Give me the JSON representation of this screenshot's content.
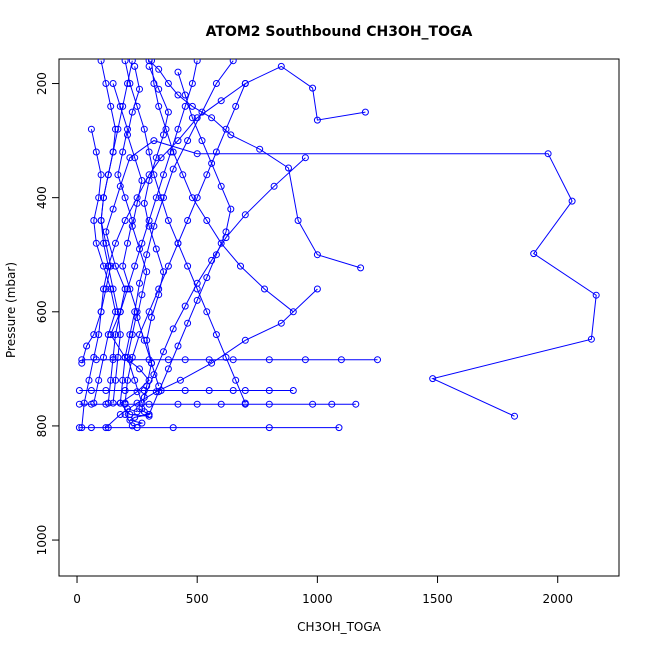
{
  "chart_data": {
    "type": "line",
    "title": "ATOM2 Southbound CH3OH_TOGA",
    "xlabel": "CH3OH_TOGA",
    "ylabel": "Pressure (mbar)",
    "xlim": [
      -75,
      2255
    ],
    "ylim": [
      1063,
      157
    ],
    "y_reversed": true,
    "x_ticks": [
      0,
      500,
      1000,
      1500,
      2000
    ],
    "y_ticks": [
      200,
      400,
      600,
      800,
      1000
    ],
    "grid": false,
    "marker": "open-circle",
    "color": "#0000ff",
    "series": [
      {
        "points": [
          [
            1820,
            783
          ],
          [
            1480,
            717
          ],
          [
            2140,
            648
          ],
          [
            2160,
            571
          ],
          [
            1900,
            498
          ],
          [
            2060,
            406
          ],
          [
            1960,
            323
          ],
          [
            500,
            323
          ],
          [
            320,
            300
          ],
          [
            220,
            330
          ],
          [
            180,
            380
          ],
          [
            150,
            420
          ],
          [
            120,
            460
          ],
          [
            160,
            520
          ],
          [
            200,
            560
          ],
          [
            180,
            600
          ],
          [
            140,
            640
          ],
          [
            200,
            680
          ],
          [
            260,
            700
          ],
          [
            300,
            720
          ],
          [
            250,
            740
          ],
          [
            180,
            760
          ],
          [
            220,
            780
          ],
          [
            300,
            783
          ]
        ]
      },
      {
        "points": [
          [
            1090,
            803
          ],
          [
            800,
            803
          ],
          [
            400,
            803
          ],
          [
            250,
            803
          ],
          [
            130,
            803
          ],
          [
            60,
            803
          ],
          [
            10,
            803
          ]
        ]
      },
      {
        "points": [
          [
            1160,
            762
          ],
          [
            1060,
            762
          ],
          [
            980,
            762
          ],
          [
            800,
            762
          ],
          [
            700,
            762
          ],
          [
            600,
            762
          ],
          [
            500,
            762
          ],
          [
            420,
            762
          ],
          [
            300,
            762
          ],
          [
            200,
            762
          ],
          [
            120,
            762
          ],
          [
            60,
            762
          ],
          [
            10,
            762
          ]
        ]
      },
      {
        "points": [
          [
            900,
            738
          ],
          [
            800,
            738
          ],
          [
            700,
            738
          ],
          [
            650,
            738
          ],
          [
            550,
            738
          ],
          [
            450,
            738
          ],
          [
            350,
            738
          ],
          [
            280,
            738
          ],
          [
            200,
            738
          ],
          [
            120,
            738
          ],
          [
            60,
            738
          ],
          [
            10,
            738
          ]
        ]
      },
      {
        "points": [
          [
            1250,
            684
          ],
          [
            1100,
            684
          ],
          [
            950,
            684
          ],
          [
            800,
            684
          ],
          [
            650,
            684
          ],
          [
            550,
            684
          ],
          [
            450,
            684
          ],
          [
            380,
            684
          ],
          [
            300,
            684
          ],
          [
            220,
            684
          ],
          [
            150,
            684
          ],
          [
            80,
            684
          ],
          [
            20,
            684
          ]
        ]
      },
      {
        "points": [
          [
            1200,
            250
          ],
          [
            1000,
            264
          ],
          [
            980,
            208
          ],
          [
            850,
            170
          ],
          [
            700,
            200
          ],
          [
            600,
            230
          ],
          [
            500,
            260
          ],
          [
            420,
            300
          ],
          [
            350,
            330
          ],
          [
            300,
            360
          ],
          [
            250,
            400
          ],
          [
            200,
            440
          ],
          [
            160,
            480
          ],
          [
            130,
            520
          ],
          [
            110,
            560
          ],
          [
            100,
            600
          ],
          [
            90,
            640
          ],
          [
            70,
            680
          ],
          [
            50,
            720
          ],
          [
            30,
            760
          ],
          [
            20,
            803
          ]
        ]
      },
      {
        "points": [
          [
            1180,
            523
          ],
          [
            1000,
            500
          ],
          [
            920,
            440
          ],
          [
            880,
            348
          ],
          [
            760,
            315
          ],
          [
            640,
            290
          ],
          [
            560,
            260
          ],
          [
            480,
            240
          ],
          [
            420,
            220
          ],
          [
            380,
            200
          ],
          [
            340,
            175
          ],
          [
            300,
            160
          ]
        ]
      },
      {
        "points": [
          [
            1000,
            560
          ],
          [
            850,
            620
          ],
          [
            700,
            650
          ],
          [
            560,
            690
          ],
          [
            430,
            720
          ],
          [
            330,
            740
          ],
          [
            250,
            760
          ],
          [
            180,
            780
          ],
          [
            120,
            803
          ]
        ]
      },
      {
        "points": [
          [
            650,
            160
          ],
          [
            580,
            200
          ],
          [
            520,
            250
          ],
          [
            460,
            300
          ],
          [
            400,
            350
          ],
          [
            360,
            400
          ],
          [
            320,
            450
          ],
          [
            290,
            500
          ],
          [
            260,
            550
          ],
          [
            240,
            600
          ],
          [
            220,
            640
          ],
          [
            200,
            680
          ],
          [
            190,
            720
          ],
          [
            180,
            760
          ]
        ]
      },
      {
        "points": [
          [
            900,
            600
          ],
          [
            780,
            560
          ],
          [
            680,
            520
          ],
          [
            600,
            480
          ],
          [
            540,
            440
          ],
          [
            480,
            400
          ],
          [
            440,
            360
          ],
          [
            400,
            320
          ],
          [
            370,
            280
          ],
          [
            340,
            240
          ],
          [
            320,
            200
          ],
          [
            310,
            160
          ]
        ]
      },
      {
        "points": [
          [
            100,
            160
          ],
          [
            120,
            200
          ],
          [
            140,
            240
          ],
          [
            160,
            280
          ],
          [
            150,
            320
          ],
          [
            130,
            360
          ],
          [
            110,
            400
          ],
          [
            100,
            440
          ],
          [
            110,
            480
          ],
          [
            130,
            520
          ],
          [
            150,
            560
          ],
          [
            170,
            600
          ],
          [
            180,
            640
          ],
          [
            170,
            680
          ],
          [
            160,
            720
          ],
          [
            150,
            760
          ]
        ]
      },
      {
        "points": [
          [
            200,
            160
          ],
          [
            220,
            200
          ],
          [
            250,
            240
          ],
          [
            280,
            280
          ],
          [
            300,
            320
          ],
          [
            320,
            360
          ],
          [
            350,
            400
          ],
          [
            380,
            440
          ],
          [
            420,
            480
          ],
          [
            460,
            520
          ],
          [
            500,
            560
          ],
          [
            540,
            600
          ],
          [
            580,
            640
          ],
          [
            620,
            680
          ],
          [
            660,
            720
          ],
          [
            700,
            760
          ]
        ]
      },
      {
        "points": [
          [
            240,
            170
          ],
          [
            260,
            210
          ],
          [
            230,
            250
          ],
          [
            210,
            290
          ],
          [
            240,
            330
          ],
          [
            270,
            370
          ],
          [
            250,
            410
          ],
          [
            230,
            450
          ],
          [
            260,
            490
          ],
          [
            290,
            530
          ],
          [
            270,
            570
          ],
          [
            250,
            610
          ],
          [
            280,
            650
          ],
          [
            310,
            690
          ],
          [
            290,
            730
          ],
          [
            270,
            770
          ]
        ]
      },
      {
        "points": [
          [
            60,
            280
          ],
          [
            80,
            320
          ],
          [
            100,
            360
          ],
          [
            90,
            400
          ],
          [
            70,
            440
          ],
          [
            80,
            480
          ],
          [
            110,
            520
          ],
          [
            140,
            560
          ],
          [
            160,
            600
          ],
          [
            130,
            640
          ],
          [
            110,
            680
          ],
          [
            90,
            720
          ],
          [
            70,
            760
          ]
        ]
      },
      {
        "points": [
          [
            420,
            180
          ],
          [
            450,
            220
          ],
          [
            480,
            260
          ],
          [
            520,
            300
          ],
          [
            560,
            340
          ],
          [
            600,
            380
          ],
          [
            640,
            420
          ],
          [
            620,
            460
          ],
          [
            580,
            500
          ],
          [
            540,
            540
          ],
          [
            500,
            580
          ],
          [
            460,
            620
          ],
          [
            420,
            660
          ],
          [
            380,
            700
          ],
          [
            340,
            740
          ],
          [
            300,
            780
          ]
        ]
      },
      {
        "points": [
          [
            700,
            200
          ],
          [
            660,
            240
          ],
          [
            620,
            280
          ],
          [
            580,
            320
          ],
          [
            540,
            360
          ],
          [
            500,
            400
          ],
          [
            460,
            440
          ],
          [
            420,
            480
          ],
          [
            380,
            520
          ],
          [
            340,
            560
          ],
          [
            300,
            600
          ],
          [
            260,
            640
          ],
          [
            230,
            680
          ],
          [
            210,
            720
          ],
          [
            200,
            760
          ]
        ]
      },
      {
        "points": [
          [
            300,
            170
          ],
          [
            340,
            210
          ],
          [
            380,
            250
          ],
          [
            360,
            290
          ],
          [
            330,
            330
          ],
          [
            300,
            370
          ],
          [
            280,
            410
          ],
          [
            300,
            450
          ],
          [
            330,
            490
          ],
          [
            360,
            530
          ],
          [
            340,
            570
          ],
          [
            310,
            610
          ],
          [
            290,
            650
          ],
          [
            310,
            690
          ],
          [
            340,
            730
          ]
        ]
      },
      {
        "points": [
          [
            150,
            200
          ],
          [
            180,
            240
          ],
          [
            210,
            280
          ],
          [
            190,
            320
          ],
          [
            170,
            360
          ],
          [
            200,
            400
          ],
          [
            230,
            440
          ],
          [
            210,
            480
          ],
          [
            190,
            520
          ],
          [
            220,
            560
          ],
          [
            250,
            600
          ],
          [
            230,
            640
          ],
          [
            210,
            680
          ],
          [
            240,
            720
          ],
          [
            270,
            760
          ]
        ]
      },
      {
        "points": [
          [
            950,
            330
          ],
          [
            820,
            380
          ],
          [
            700,
            430
          ],
          [
            620,
            470
          ],
          [
            560,
            510
          ],
          [
            500,
            550
          ],
          [
            450,
            590
          ],
          [
            400,
            630
          ],
          [
            360,
            670
          ],
          [
            320,
            710
          ],
          [
            280,
            750
          ]
        ]
      },
      {
        "points": [
          [
            20,
            690
          ],
          [
            40,
            660
          ],
          [
            70,
            640
          ],
          [
            100,
            600
          ],
          [
            120,
            560
          ],
          [
            140,
            520
          ],
          [
            120,
            480
          ],
          [
            100,
            440
          ],
          [
            110,
            400
          ],
          [
            130,
            360
          ],
          [
            150,
            320
          ],
          [
            170,
            280
          ],
          [
            190,
            240
          ],
          [
            210,
            200
          ],
          [
            230,
            160
          ]
        ]
      },
      {
        "points": [
          [
            500,
            160
          ],
          [
            480,
            200
          ],
          [
            450,
            240
          ],
          [
            420,
            280
          ],
          [
            390,
            320
          ],
          [
            360,
            360
          ],
          [
            330,
            400
          ],
          [
            300,
            440
          ],
          [
            270,
            480
          ],
          [
            240,
            520
          ],
          [
            210,
            560
          ],
          [
            180,
            600
          ],
          [
            160,
            640
          ],
          [
            150,
            680
          ],
          [
            140,
            720
          ],
          [
            130,
            760
          ]
        ]
      },
      {
        "points": [
          [
            260,
            770
          ],
          [
            280,
            775
          ],
          [
            300,
            780
          ],
          [
            240,
            785
          ],
          [
            220,
            790
          ],
          [
            270,
            795
          ],
          [
            230,
            800
          ],
          [
            200,
            780
          ],
          [
            210,
            770
          ],
          [
            250,
            775
          ]
        ]
      }
    ]
  }
}
